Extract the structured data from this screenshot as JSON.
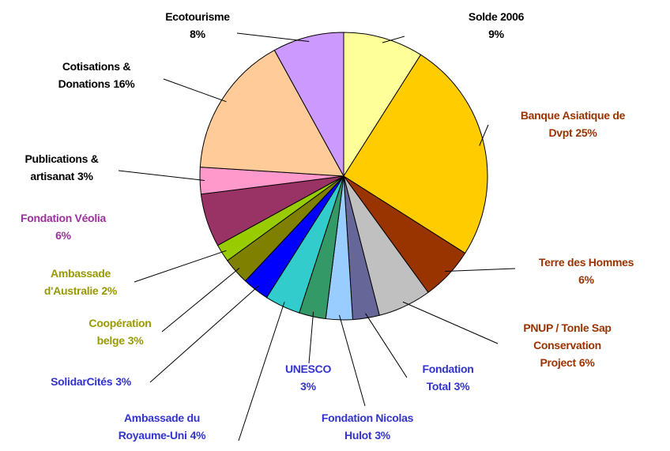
{
  "chart_data": {
    "type": "pie",
    "categories": [
      "Solde 2006",
      "Banque Asiatique de Dvpt",
      "Terre des Hommes",
      "PNUP / Tonle Sap Conservation Project",
      "Fondation Total",
      "Fondation Nicolas Hulot",
      "UNESCO",
      "Ambassade du Royaume-Uni",
      "SolidarCités",
      "Coopération belge",
      "Ambassade d'Australie",
      "Fondation Véolia",
      "Publications & artisanat",
      "Cotisations & Donations",
      "Ecotourisme"
    ],
    "values": [
      9,
      25,
      6,
      6,
      3,
      3,
      3,
      4,
      3,
      3,
      2,
      6,
      3,
      16,
      8
    ],
    "value_labels": [
      "9%",
      "25%",
      "6%",
      "6%",
      "3%",
      "3%",
      "3%",
      "4%",
      "3%",
      "3%",
      "2%",
      "6%",
      "3%",
      "16%",
      "8%"
    ],
    "colors": [
      "#ffff99",
      "#ffcc00",
      "#993300",
      "#c0c0c0",
      "#666699",
      "#99ccff",
      "#339966",
      "#33cccc",
      "#0000ff",
      "#808000",
      "#99cc00",
      "#993366",
      "#ff99cc",
      "#ffcc99",
      "#cc99ff"
    ],
    "label_colors": [
      "#000000",
      "#993300",
      "#993300",
      "#993300",
      "#3333cc",
      "#3333cc",
      "#3333cc",
      "#3333cc",
      "#3333cc",
      "#999900",
      "#999900",
      "#993399",
      "#000000",
      "#000000",
      "#000000"
    ]
  }
}
